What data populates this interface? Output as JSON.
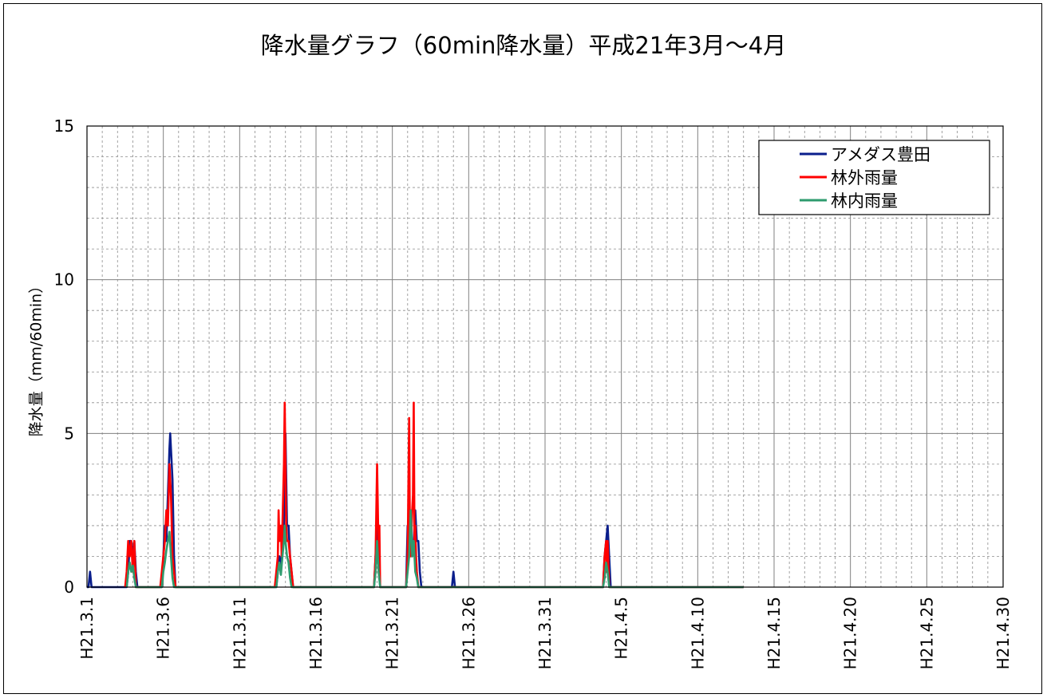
{
  "chart_data": {
    "type": "line",
    "title": "降水量グラフ（60min降水量）平成21年3月～4月",
    "ylabel": "降水量（mm/60min）",
    "xlabel": "",
    "ylim": [
      0,
      15
    ],
    "yticks": [
      0,
      5,
      10,
      15
    ],
    "y_minor_step": 1,
    "xlim": [
      1,
      61
    ],
    "x_unit": "day (1 = H21.3.1, 32 = H21.4.1)",
    "xticks": [
      {
        "pos": 1,
        "label": "H21.3.1"
      },
      {
        "pos": 6,
        "label": "H21.3.6"
      },
      {
        "pos": 11,
        "label": "H21.3.11"
      },
      {
        "pos": 16,
        "label": "H21.3.16"
      },
      {
        "pos": 21,
        "label": "H21.3.21"
      },
      {
        "pos": 26,
        "label": "H21.3.26"
      },
      {
        "pos": 31,
        "label": "H21.3.31"
      },
      {
        "pos": 36,
        "label": "H21.4.5"
      },
      {
        "pos": 41,
        "label": "H21.4.10"
      },
      {
        "pos": 46,
        "label": "H21.4.15"
      },
      {
        "pos": 51,
        "label": "H21.4.20"
      },
      {
        "pos": 56,
        "label": "H21.4.25"
      },
      {
        "pos": 61,
        "label": "H21.4.30"
      }
    ],
    "grid": true,
    "legend_position": "top-right",
    "series": [
      {
        "name": "アメダス豊田",
        "color": "#0a1e8c",
        "points": [
          [
            1.0,
            0
          ],
          [
            1.1,
            0
          ],
          [
            1.2,
            0.5
          ],
          [
            1.3,
            0
          ],
          [
            3.6,
            0
          ],
          [
            3.7,
            0.5
          ],
          [
            3.8,
            1.5
          ],
          [
            3.9,
            1.5
          ],
          [
            4.0,
            1.0
          ],
          [
            4.1,
            1.5
          ],
          [
            4.2,
            0.5
          ],
          [
            4.3,
            0
          ],
          [
            5.9,
            0
          ],
          [
            6.0,
            1.0
          ],
          [
            6.1,
            2.0
          ],
          [
            6.2,
            1.5
          ],
          [
            6.3,
            3.0
          ],
          [
            6.4,
            4.5
          ],
          [
            6.45,
            5.0
          ],
          [
            6.5,
            4.5
          ],
          [
            6.6,
            3.5
          ],
          [
            6.7,
            1.0
          ],
          [
            6.8,
            0
          ],
          [
            13.4,
            0
          ],
          [
            13.5,
            0.5
          ],
          [
            13.6,
            1.0
          ],
          [
            13.7,
            0.5
          ],
          [
            13.8,
            1.5
          ],
          [
            13.9,
            2.0
          ],
          [
            13.95,
            3.0
          ],
          [
            14.0,
            5.0
          ],
          [
            14.05,
            3.5
          ],
          [
            14.1,
            2.0
          ],
          [
            14.2,
            2.0
          ],
          [
            14.3,
            1.0
          ],
          [
            14.4,
            0.5
          ],
          [
            14.5,
            0
          ],
          [
            19.8,
            0
          ],
          [
            19.9,
            1.0
          ],
          [
            20.0,
            2.0
          ],
          [
            20.1,
            1.5
          ],
          [
            20.2,
            0
          ],
          [
            21.9,
            0
          ],
          [
            22.0,
            2.0
          ],
          [
            22.1,
            1.5
          ],
          [
            22.2,
            2.0
          ],
          [
            22.3,
            1.0
          ],
          [
            22.4,
            1.5
          ],
          [
            22.5,
            2.5
          ],
          [
            22.6,
            1.5
          ],
          [
            22.7,
            1.5
          ],
          [
            22.8,
            0.5
          ],
          [
            22.9,
            0
          ],
          [
            24.9,
            0
          ],
          [
            25.0,
            0.5
          ],
          [
            25.1,
            0
          ],
          [
            34.8,
            0
          ],
          [
            34.9,
            1.0
          ],
          [
            35.0,
            1.5
          ],
          [
            35.1,
            2.0
          ],
          [
            35.2,
            1.0
          ],
          [
            35.3,
            0
          ],
          [
            44.0,
            0
          ]
        ]
      },
      {
        "name": "林外雨量",
        "color": "#ff0000",
        "points": [
          [
            3.5,
            0
          ],
          [
            3.6,
            0.5
          ],
          [
            3.7,
            1.5
          ],
          [
            3.8,
            1.0
          ],
          [
            3.9,
            1.5
          ],
          [
            4.0,
            0.5
          ],
          [
            4.1,
            1.5
          ],
          [
            4.2,
            0
          ],
          [
            5.8,
            0
          ],
          [
            5.9,
            0.5
          ],
          [
            6.0,
            1.0
          ],
          [
            6.1,
            1.5
          ],
          [
            6.2,
            2.5
          ],
          [
            6.3,
            2.0
          ],
          [
            6.35,
            3.0
          ],
          [
            6.4,
            4.0
          ],
          [
            6.5,
            3.0
          ],
          [
            6.6,
            1.0
          ],
          [
            6.7,
            0.5
          ],
          [
            6.8,
            0
          ],
          [
            13.3,
            0
          ],
          [
            13.4,
            0.5
          ],
          [
            13.5,
            1.0
          ],
          [
            13.55,
            2.5
          ],
          [
            13.6,
            1.5
          ],
          [
            13.7,
            2.0
          ],
          [
            13.75,
            1.0
          ],
          [
            13.8,
            2.0
          ],
          [
            13.85,
            3.0
          ],
          [
            13.9,
            4.0
          ],
          [
            13.95,
            6.0
          ],
          [
            14.0,
            4.0
          ],
          [
            14.05,
            2.0
          ],
          [
            14.1,
            1.5
          ],
          [
            14.2,
            1.5
          ],
          [
            14.3,
            1.0
          ],
          [
            14.4,
            0.5
          ],
          [
            14.5,
            0
          ],
          [
            19.8,
            0
          ],
          [
            19.9,
            1.0
          ],
          [
            20.0,
            4.0
          ],
          [
            20.1,
            1.0
          ],
          [
            20.15,
            2.0
          ],
          [
            20.2,
            0
          ],
          [
            21.9,
            0
          ],
          [
            22.0,
            1.0
          ],
          [
            22.1,
            5.5
          ],
          [
            22.15,
            1.5
          ],
          [
            22.2,
            1.0
          ],
          [
            22.3,
            2.5
          ],
          [
            22.35,
            3.0
          ],
          [
            22.4,
            6.0
          ],
          [
            22.45,
            1.5
          ],
          [
            22.5,
            2.0
          ],
          [
            22.55,
            1.0
          ],
          [
            22.6,
            0.5
          ],
          [
            22.7,
            0
          ],
          [
            34.8,
            0
          ],
          [
            34.9,
            1.0
          ],
          [
            35.0,
            1.5
          ],
          [
            35.05,
            0.5
          ],
          [
            35.1,
            1.5
          ],
          [
            35.2,
            0
          ],
          [
            44.0,
            0
          ]
        ]
      },
      {
        "name": "林内雨量",
        "color": "#2e9b6e",
        "points": [
          [
            3.6,
            0
          ],
          [
            3.7,
            0.5
          ],
          [
            3.8,
            0.8
          ],
          [
            3.9,
            0.5
          ],
          [
            4.0,
            0.7
          ],
          [
            4.1,
            0.3
          ],
          [
            4.2,
            0
          ],
          [
            5.9,
            0
          ],
          [
            6.0,
            0.5
          ],
          [
            6.1,
            0.8
          ],
          [
            6.2,
            1.2
          ],
          [
            6.3,
            1.5
          ],
          [
            6.4,
            1.8
          ],
          [
            6.5,
            1.0
          ],
          [
            6.6,
            0.3
          ],
          [
            6.7,
            0
          ],
          [
            13.4,
            0
          ],
          [
            13.5,
            0.5
          ],
          [
            13.6,
            0.8
          ],
          [
            13.7,
            0.4
          ],
          [
            13.8,
            1.0
          ],
          [
            13.9,
            1.5
          ],
          [
            13.95,
            2.0
          ],
          [
            14.0,
            1.5
          ],
          [
            14.1,
            1.0
          ],
          [
            14.2,
            0.8
          ],
          [
            14.3,
            0.3
          ],
          [
            14.4,
            0
          ],
          [
            19.8,
            0
          ],
          [
            19.9,
            0.5
          ],
          [
            20.0,
            1.5
          ],
          [
            20.1,
            0.5
          ],
          [
            20.2,
            0
          ],
          [
            21.9,
            0
          ],
          [
            22.0,
            0.5
          ],
          [
            22.1,
            1.0
          ],
          [
            22.2,
            2.5
          ],
          [
            22.3,
            1.0
          ],
          [
            22.4,
            1.5
          ],
          [
            22.5,
            0.5
          ],
          [
            22.6,
            0.3
          ],
          [
            22.7,
            0
          ],
          [
            34.8,
            0
          ],
          [
            34.9,
            0.3
          ],
          [
            35.0,
            0.8
          ],
          [
            35.1,
            0.5
          ],
          [
            35.2,
            0
          ],
          [
            44.0,
            0
          ]
        ]
      }
    ]
  }
}
